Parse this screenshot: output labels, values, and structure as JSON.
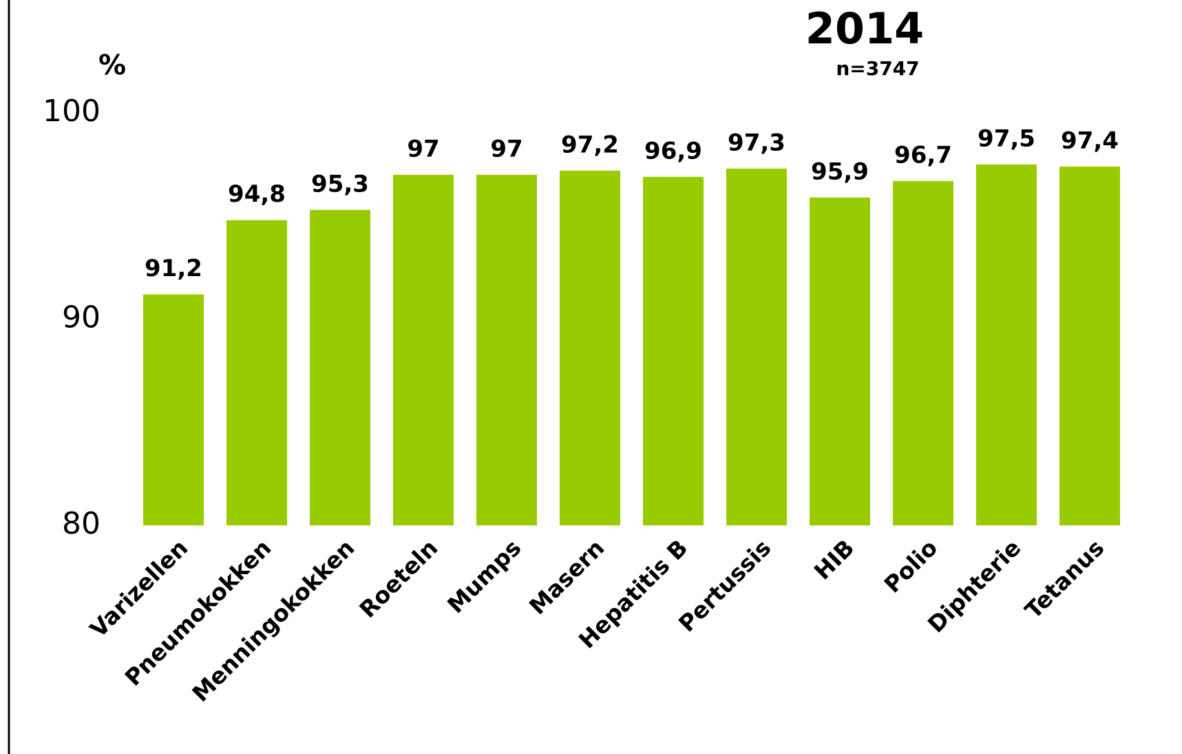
{
  "chart_data": {
    "type": "bar",
    "title": "2014",
    "subtitle": "n=3747",
    "y_label": "%",
    "categories": [
      "Varizellen",
      "Pneumokokken",
      "Menningokokken",
      "Roeteln",
      "Mumps",
      "Masern",
      "Hepatitis B",
      "Pertussis",
      "HIB",
      "Polio",
      "Diphterie",
      "Tetanus"
    ],
    "values": [
      91.2,
      94.8,
      95.3,
      97,
      97,
      97.2,
      96.9,
      97.3,
      95.9,
      96.7,
      97.5,
      97.4
    ],
    "value_labels": [
      "91,2",
      "94,8",
      "95,3",
      "97",
      "97",
      "97,2",
      "96,9",
      "97,3",
      "95,9",
      "96,7",
      "97,5",
      "97,4"
    ],
    "color": "#99cc00",
    "ylim": [
      80,
      100
    ],
    "yticks": [
      80,
      90,
      100
    ],
    "grid": false
  }
}
